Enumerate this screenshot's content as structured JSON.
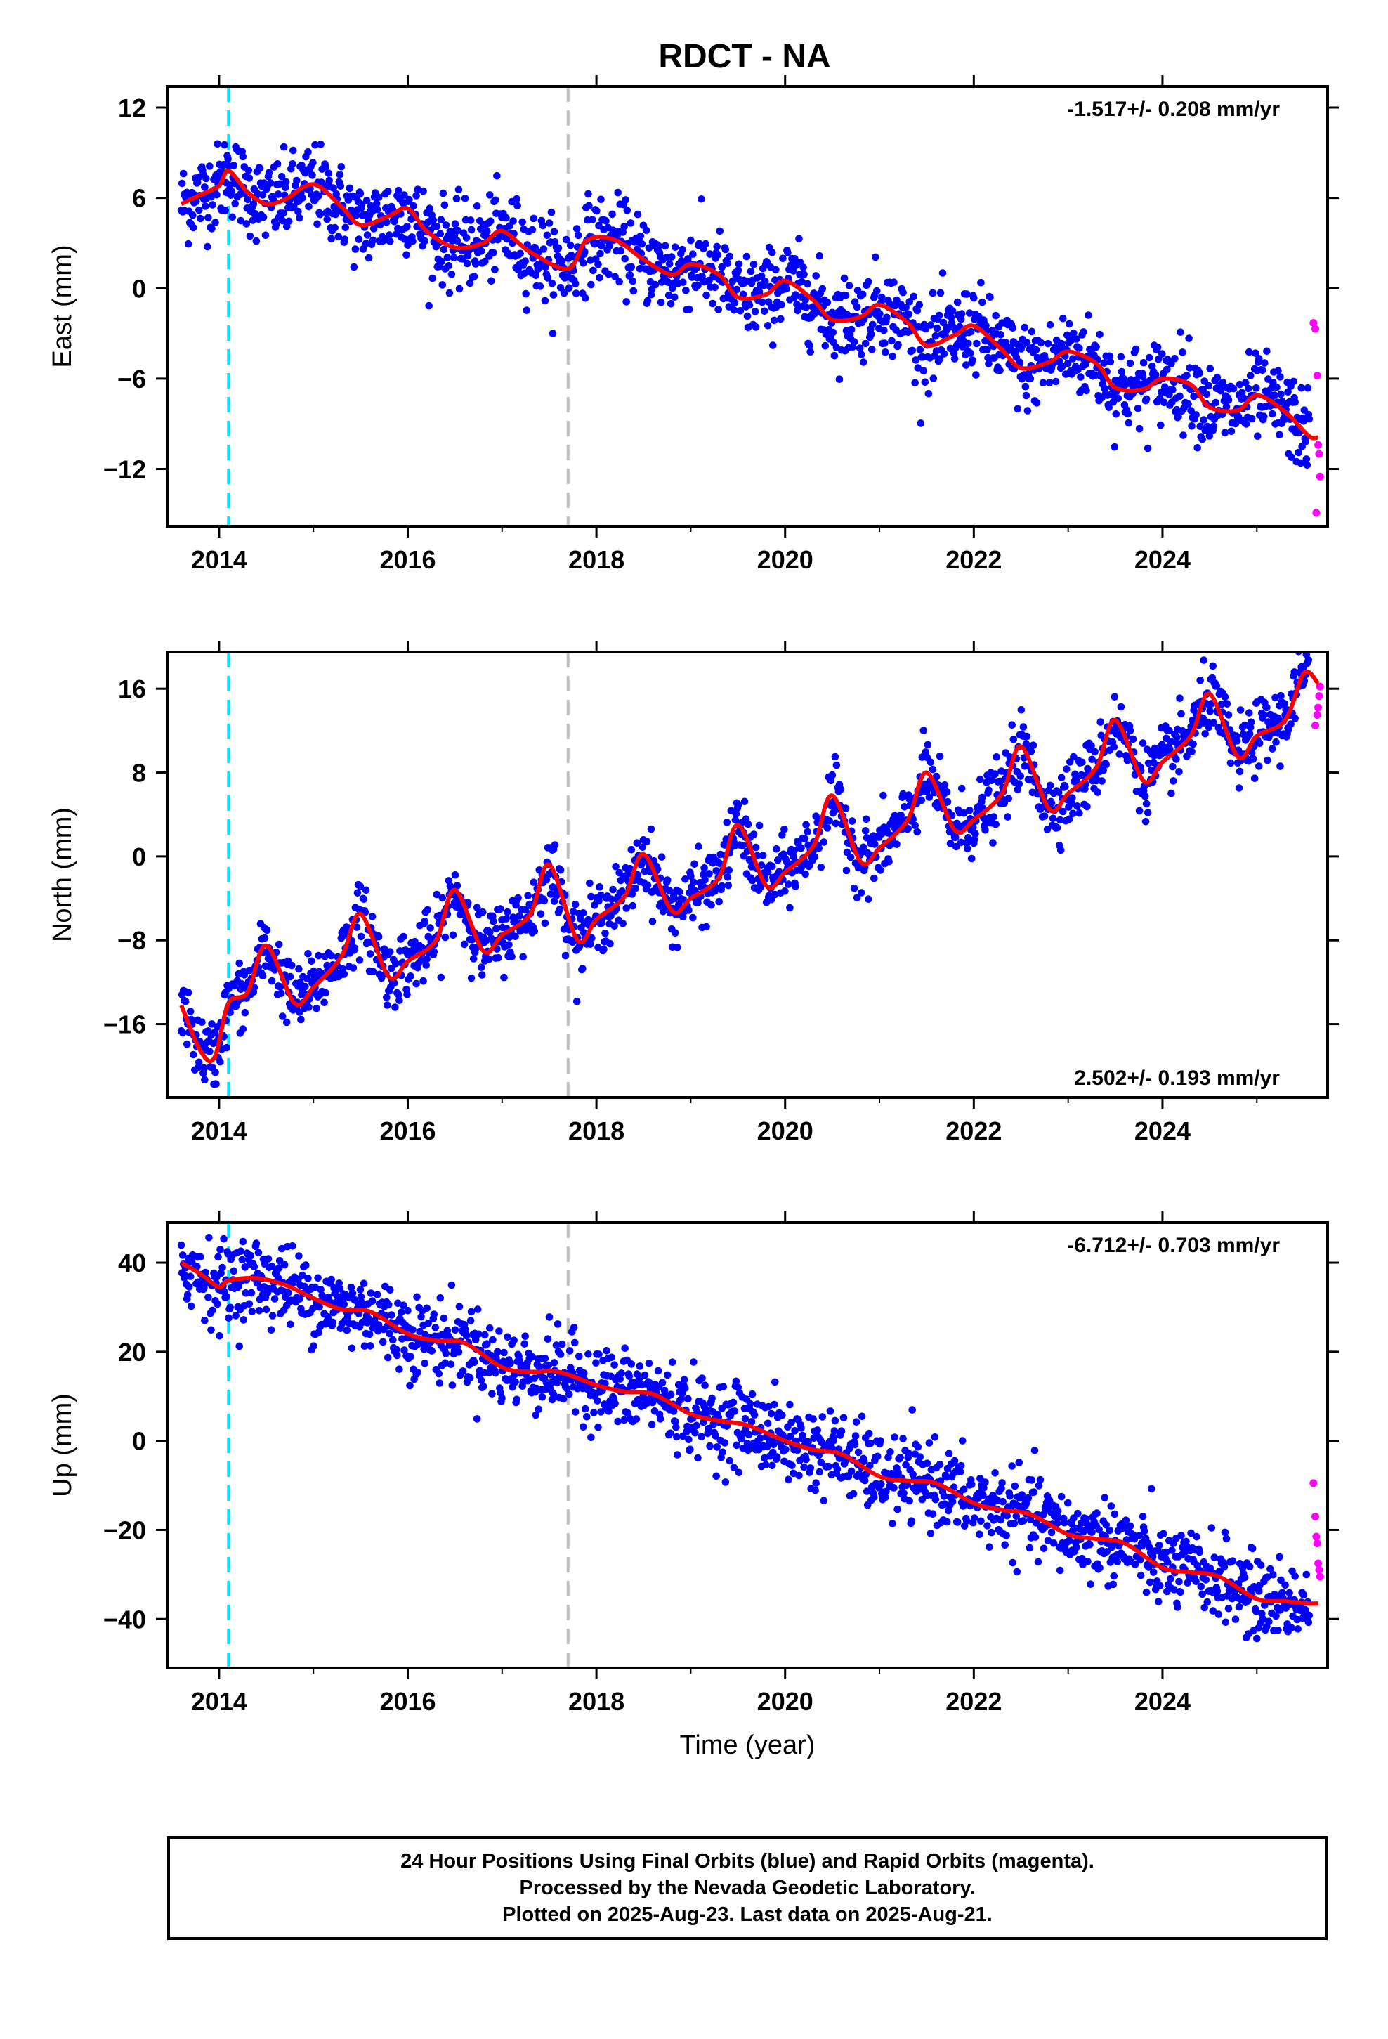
{
  "chart_data": [
    {
      "type": "scatter",
      "title": "RDCT - NA",
      "ylabel": "East (mm)",
      "xlabel": "",
      "rate_text": "-1.517+/- 0.208 mm/yr",
      "rate_position": "top-right",
      "xlim": [
        2013.45,
        2025.75
      ],
      "ylim": [
        -15.8,
        13.4
      ],
      "xticks": [
        2014,
        2016,
        2018,
        2020,
        2022,
        2024
      ],
      "yticks": [
        -12,
        -6,
        0,
        6,
        12
      ],
      "vlines": [
        {
          "x": 2014.1,
          "color": "#00e5ff",
          "style": "dashed"
        },
        {
          "x": 2017.7,
          "color": "#c0c0c0",
          "style": "dashed"
        }
      ],
      "scatter_scatter": 1.4,
      "series": [
        {
          "color": "#0000ff",
          "kind": "points",
          "x": [
            2013.6,
            2013.8,
            2014.0,
            2014.1,
            2014.3,
            2014.5,
            2014.7,
            2015.0,
            2015.3,
            2015.5,
            2015.8,
            2016.0,
            2016.2,
            2016.5,
            2016.8,
            2017.0,
            2017.3,
            2017.7,
            2017.9,
            2018.2,
            2018.5,
            2018.8,
            2019.0,
            2019.3,
            2019.5,
            2019.8,
            2020.0,
            2020.3,
            2020.5,
            2020.8,
            2021.0,
            2021.3,
            2021.5,
            2021.8,
            2022.0,
            2022.3,
            2022.5,
            2022.8,
            2023.0,
            2023.3,
            2023.5,
            2023.8,
            2024.0,
            2024.3,
            2024.5,
            2024.8,
            2025.0,
            2025.3,
            2025.55
          ],
          "y": [
            5.6,
            6.2,
            6.8,
            7.8,
            6.4,
            5.6,
            5.9,
            6.9,
            5.4,
            4.2,
            4.8,
            5.3,
            3.8,
            2.7,
            3.0,
            3.8,
            2.4,
            1.3,
            3.2,
            3.2,
            1.9,
            0.9,
            1.6,
            0.9,
            -0.6,
            -0.4,
            0.5,
            -0.8,
            -2.1,
            -1.9,
            -1.1,
            -2.3,
            -3.8,
            -3.1,
            -2.5,
            -4.1,
            -5.3,
            -4.9,
            -4.2,
            -5.0,
            -6.6,
            -6.7,
            -6.0,
            -6.4,
            -7.9,
            -8.1,
            -7.1,
            -8.2,
            -9.8
          ]
        },
        {
          "color": "#ff00ff",
          "kind": "points",
          "x": [
            2025.6,
            2025.62,
            2025.64,
            2025.65,
            2025.66,
            2025.67,
            2025.63
          ],
          "y": [
            -2.3,
            -2.7,
            -5.8,
            -10.4,
            -11.0,
            -12.5,
            -14.9
          ]
        },
        {
          "color": "#ff0000",
          "kind": "line",
          "x": [
            2013.6,
            2013.8,
            2014.0,
            2014.1,
            2014.3,
            2014.5,
            2014.7,
            2015.0,
            2015.3,
            2015.5,
            2015.8,
            2016.0,
            2016.2,
            2016.5,
            2016.8,
            2017.0,
            2017.3,
            2017.7,
            2017.9,
            2018.2,
            2018.5,
            2018.8,
            2019.0,
            2019.3,
            2019.5,
            2019.8,
            2020.0,
            2020.3,
            2020.5,
            2020.8,
            2021.0,
            2021.3,
            2021.5,
            2021.8,
            2022.0,
            2022.3,
            2022.5,
            2022.8,
            2023.0,
            2023.3,
            2023.5,
            2023.8,
            2024.0,
            2024.3,
            2024.5,
            2024.8,
            2025.0,
            2025.3,
            2025.55,
            2025.65
          ],
          "y": [
            5.6,
            6.2,
            6.8,
            7.8,
            6.4,
            5.6,
            5.9,
            6.9,
            5.4,
            4.2,
            4.8,
            5.3,
            3.8,
            2.7,
            3.0,
            3.8,
            2.4,
            1.3,
            3.2,
            3.2,
            1.9,
            0.9,
            1.6,
            0.9,
            -0.6,
            -0.4,
            0.5,
            -0.8,
            -2.1,
            -1.9,
            -1.1,
            -2.3,
            -3.8,
            -3.1,
            -2.5,
            -4.1,
            -5.3,
            -4.9,
            -4.2,
            -5.0,
            -6.6,
            -6.7,
            -6.0,
            -6.4,
            -7.9,
            -8.1,
            -7.1,
            -8.2,
            -9.8,
            -9.9
          ]
        }
      ]
    },
    {
      "type": "scatter",
      "title": "",
      "ylabel": "North (mm)",
      "xlabel": "",
      "rate_text": "2.502+/- 0.193 mm/yr",
      "rate_position": "bottom-right",
      "xlim": [
        2013.45,
        2025.75
      ],
      "ylim": [
        -23.0,
        19.5
      ],
      "xticks": [
        2014,
        2016,
        2018,
        2020,
        2022,
        2024
      ],
      "yticks": [
        -16,
        -8,
        0,
        8,
        16
      ],
      "vlines": [
        {
          "x": 2014.1,
          "color": "#00e5ff",
          "style": "dashed"
        },
        {
          "x": 2017.7,
          "color": "#c0c0c0",
          "style": "dashed"
        }
      ],
      "scatter_scatter": 1.6,
      "series": [
        {
          "color": "#0000ff",
          "kind": "points",
          "x": [
            2013.6,
            2013.8,
            2013.95,
            2014.1,
            2014.3,
            2014.5,
            2014.8,
            2015.0,
            2015.3,
            2015.5,
            2015.8,
            2016.0,
            2016.3,
            2016.5,
            2016.8,
            2017.0,
            2017.3,
            2017.5,
            2017.8,
            2018.0,
            2018.3,
            2018.5,
            2018.8,
            2019.0,
            2019.3,
            2019.5,
            2019.8,
            2020.0,
            2020.3,
            2020.5,
            2020.8,
            2021.0,
            2021.3,
            2021.5,
            2021.8,
            2022.0,
            2022.3,
            2022.5,
            2022.8,
            2023.0,
            2023.3,
            2023.5,
            2023.8,
            2024.0,
            2024.3,
            2024.5,
            2024.8,
            2025.0,
            2025.3,
            2025.5
          ],
          "y": [
            -14.2,
            -18.5,
            -19.2,
            -14.0,
            -13.0,
            -8.5,
            -14.0,
            -12.5,
            -9.5,
            -5.5,
            -11.5,
            -10.0,
            -8.0,
            -3.2,
            -9.0,
            -7.5,
            -5.5,
            -0.8,
            -8.0,
            -6.0,
            -3.8,
            0.2,
            -5.2,
            -4.0,
            -2.0,
            3.0,
            -2.8,
            -1.5,
            1.0,
            5.8,
            -0.5,
            0.8,
            3.5,
            8.0,
            2.5,
            3.5,
            6.0,
            10.5,
            4.5,
            6.0,
            8.5,
            13.0,
            7.2,
            9.0,
            11.5,
            15.5,
            9.5,
            11.5,
            13.0,
            17.5
          ]
        },
        {
          "color": "#ff00ff",
          "kind": "points",
          "x": [
            2025.62,
            2025.64,
            2025.65,
            2025.66,
            2025.67
          ],
          "y": [
            12.5,
            13.5,
            14.2,
            15.3,
            16.2
          ]
        },
        {
          "color": "#ff0000",
          "kind": "line",
          "x": [
            2013.6,
            2013.8,
            2013.95,
            2014.1,
            2014.3,
            2014.5,
            2014.8,
            2015.0,
            2015.3,
            2015.5,
            2015.8,
            2016.0,
            2016.3,
            2016.5,
            2016.8,
            2017.0,
            2017.3,
            2017.5,
            2017.8,
            2018.0,
            2018.3,
            2018.5,
            2018.8,
            2019.0,
            2019.3,
            2019.5,
            2019.8,
            2020.0,
            2020.3,
            2020.5,
            2020.8,
            2021.0,
            2021.3,
            2021.5,
            2021.8,
            2022.0,
            2022.3,
            2022.5,
            2022.8,
            2023.0,
            2023.3,
            2023.5,
            2023.8,
            2024.0,
            2024.3,
            2024.5,
            2024.8,
            2025.0,
            2025.3,
            2025.5,
            2025.65
          ],
          "y": [
            -14.2,
            -18.5,
            -19.2,
            -14.0,
            -13.0,
            -8.5,
            -14.0,
            -12.5,
            -9.5,
            -5.5,
            -11.5,
            -10.0,
            -8.0,
            -3.2,
            -9.0,
            -7.5,
            -5.5,
            -0.8,
            -8.0,
            -6.0,
            -3.8,
            0.2,
            -5.2,
            -4.0,
            -2.0,
            3.0,
            -2.8,
            -1.5,
            1.0,
            5.8,
            -0.5,
            0.8,
            3.5,
            8.0,
            2.5,
            3.5,
            6.0,
            10.5,
            4.5,
            6.0,
            8.5,
            13.0,
            7.2,
            9.0,
            11.5,
            15.5,
            9.5,
            11.5,
            13.0,
            17.5,
            16.5
          ]
        }
      ]
    },
    {
      "type": "scatter",
      "title": "",
      "ylabel": "Up (mm)",
      "xlabel": "Time (year)",
      "rate_text": "-6.712+/- 0.703 mm/yr",
      "rate_position": "top-right",
      "xlim": [
        2013.45,
        2025.75
      ],
      "ylim": [
        -51,
        49
      ],
      "xticks": [
        2014,
        2016,
        2018,
        2020,
        2022,
        2024
      ],
      "yticks": [
        -40,
        -20,
        0,
        20,
        40
      ],
      "vlines": [
        {
          "x": 2014.1,
          "color": "#00e5ff",
          "style": "dashed"
        },
        {
          "x": 2017.7,
          "color": "#c0c0c0",
          "style": "dashed"
        }
      ],
      "scatter_scatter": 4.5,
      "series": [
        {
          "color": "#0000ff",
          "kind": "points",
          "x": [
            2013.6,
            2013.8,
            2014.0,
            2014.1,
            2014.4,
            2014.7,
            2015.0,
            2015.3,
            2015.6,
            2016.0,
            2016.3,
            2016.6,
            2017.0,
            2017.3,
            2017.6,
            2018.0,
            2018.3,
            2018.6,
            2019.0,
            2019.3,
            2019.6,
            2020.0,
            2020.3,
            2020.6,
            2021.0,
            2021.3,
            2021.6,
            2022.0,
            2022.3,
            2022.6,
            2023.0,
            2023.3,
            2023.6,
            2024.0,
            2024.3,
            2024.6,
            2025.0,
            2025.3,
            2025.55
          ],
          "y": [
            40.0,
            37.5,
            34.5,
            36.0,
            36.5,
            35.0,
            32.0,
            29.5,
            29.0,
            24.0,
            22.5,
            22.0,
            16.5,
            15.5,
            15.5,
            12.5,
            11.0,
            10.5,
            6.0,
            4.5,
            3.5,
            0.0,
            -2.0,
            -3.0,
            -8.0,
            -9.0,
            -9.5,
            -14.0,
            -15.5,
            -16.5,
            -21.0,
            -22.0,
            -23.0,
            -28.5,
            -29.5,
            -30.5,
            -35.5,
            -36.0,
            -36.5
          ]
        },
        {
          "color": "#ff00ff",
          "kind": "points",
          "x": [
            2025.6,
            2025.62,
            2025.63,
            2025.64,
            2025.65,
            2025.66,
            2025.67
          ],
          "y": [
            -9.5,
            -17.0,
            -21.5,
            -23.0,
            -27.5,
            -29.0,
            -30.5
          ]
        },
        {
          "color": "#ff0000",
          "kind": "line",
          "x": [
            2013.6,
            2013.8,
            2014.0,
            2014.1,
            2014.4,
            2014.7,
            2015.0,
            2015.3,
            2015.6,
            2016.0,
            2016.3,
            2016.6,
            2017.0,
            2017.3,
            2017.6,
            2018.0,
            2018.3,
            2018.6,
            2019.0,
            2019.3,
            2019.6,
            2020.0,
            2020.3,
            2020.6,
            2021.0,
            2021.3,
            2021.6,
            2022.0,
            2022.3,
            2022.6,
            2023.0,
            2023.3,
            2023.6,
            2024.0,
            2024.3,
            2024.6,
            2025.0,
            2025.3,
            2025.55,
            2025.65
          ],
          "y": [
            40.0,
            37.5,
            34.5,
            36.0,
            36.5,
            35.0,
            32.0,
            29.5,
            29.0,
            24.0,
            22.5,
            22.0,
            16.5,
            15.5,
            15.5,
            12.5,
            11.0,
            10.5,
            6.0,
            4.5,
            3.5,
            0.0,
            -2.0,
            -3.0,
            -8.0,
            -9.0,
            -9.5,
            -14.0,
            -15.5,
            -16.5,
            -21.0,
            -22.0,
            -23.0,
            -28.5,
            -29.5,
            -30.5,
            -35.5,
            -36.0,
            -36.5,
            -36.5
          ]
        }
      ]
    }
  ],
  "footer": {
    "line1": "24 Hour Positions Using Final Orbits (blue) and Rapid Orbits (magenta).",
    "line2": "Processed by the Nevada Geodetic Laboratory.",
    "line3": "Plotted on 2025-Aug-23. Last data on 2025-Aug-21."
  }
}
